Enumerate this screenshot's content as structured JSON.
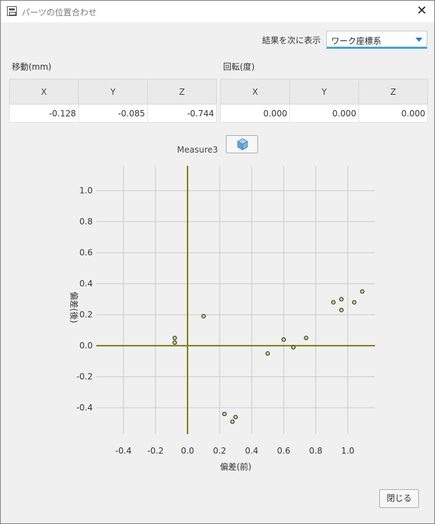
{
  "window": {
    "title": "パーツの位置合わせ"
  },
  "display": {
    "label": "結果を次に表示",
    "selected": "ワーク座標系"
  },
  "translation": {
    "label": "移動(mm)",
    "headers": [
      "X",
      "Y",
      "Z"
    ],
    "values": [
      "-0.128",
      "-0.085",
      "-0.744"
    ]
  },
  "rotation": {
    "label": "回転(度)",
    "headers": [
      "X",
      "Y",
      "Z"
    ],
    "values": [
      "0.000",
      "0.000",
      "0.000"
    ]
  },
  "measure": {
    "label": "Measure3",
    "button_icon": "measure-cube-icon"
  },
  "chart_data": {
    "type": "scatter",
    "xlabel": "偏差(前)",
    "ylabel": "偏差(後)",
    "xlim": [
      -0.57,
      1.17
    ],
    "ylim": [
      -0.57,
      1.16
    ],
    "xticks": [
      "-0.4",
      "-0.2",
      "0.0",
      "0.2",
      "0.4",
      "0.6",
      "0.8",
      "1.0"
    ],
    "xtick_values": [
      -0.4,
      -0.2,
      0.0,
      0.2,
      0.4,
      0.6,
      0.8,
      1.0
    ],
    "yticks": [
      "-0.4",
      "-0.2",
      "0.0",
      "0.2",
      "0.4",
      "0.6",
      "0.8",
      "1.0"
    ],
    "ytick_values": [
      -0.4,
      -0.2,
      0.0,
      0.2,
      0.4,
      0.6,
      0.8,
      1.0
    ],
    "grid": true,
    "axis_color": "#7c7c00",
    "point_color": "#c8d67a",
    "points": [
      [
        -0.08,
        0.05
      ],
      [
        -0.08,
        0.02
      ],
      [
        0.1,
        0.19
      ],
      [
        0.23,
        -0.44
      ],
      [
        0.28,
        -0.49
      ],
      [
        0.3,
        -0.46
      ],
      [
        0.5,
        -0.05
      ],
      [
        0.6,
        0.04
      ],
      [
        0.66,
        -0.01
      ],
      [
        0.74,
        0.05
      ],
      [
        0.91,
        0.28
      ],
      [
        0.96,
        0.3
      ],
      [
        0.96,
        0.23
      ],
      [
        1.04,
        0.28
      ],
      [
        1.09,
        0.35
      ]
    ]
  },
  "footer": {
    "close_label": "閉じる"
  }
}
